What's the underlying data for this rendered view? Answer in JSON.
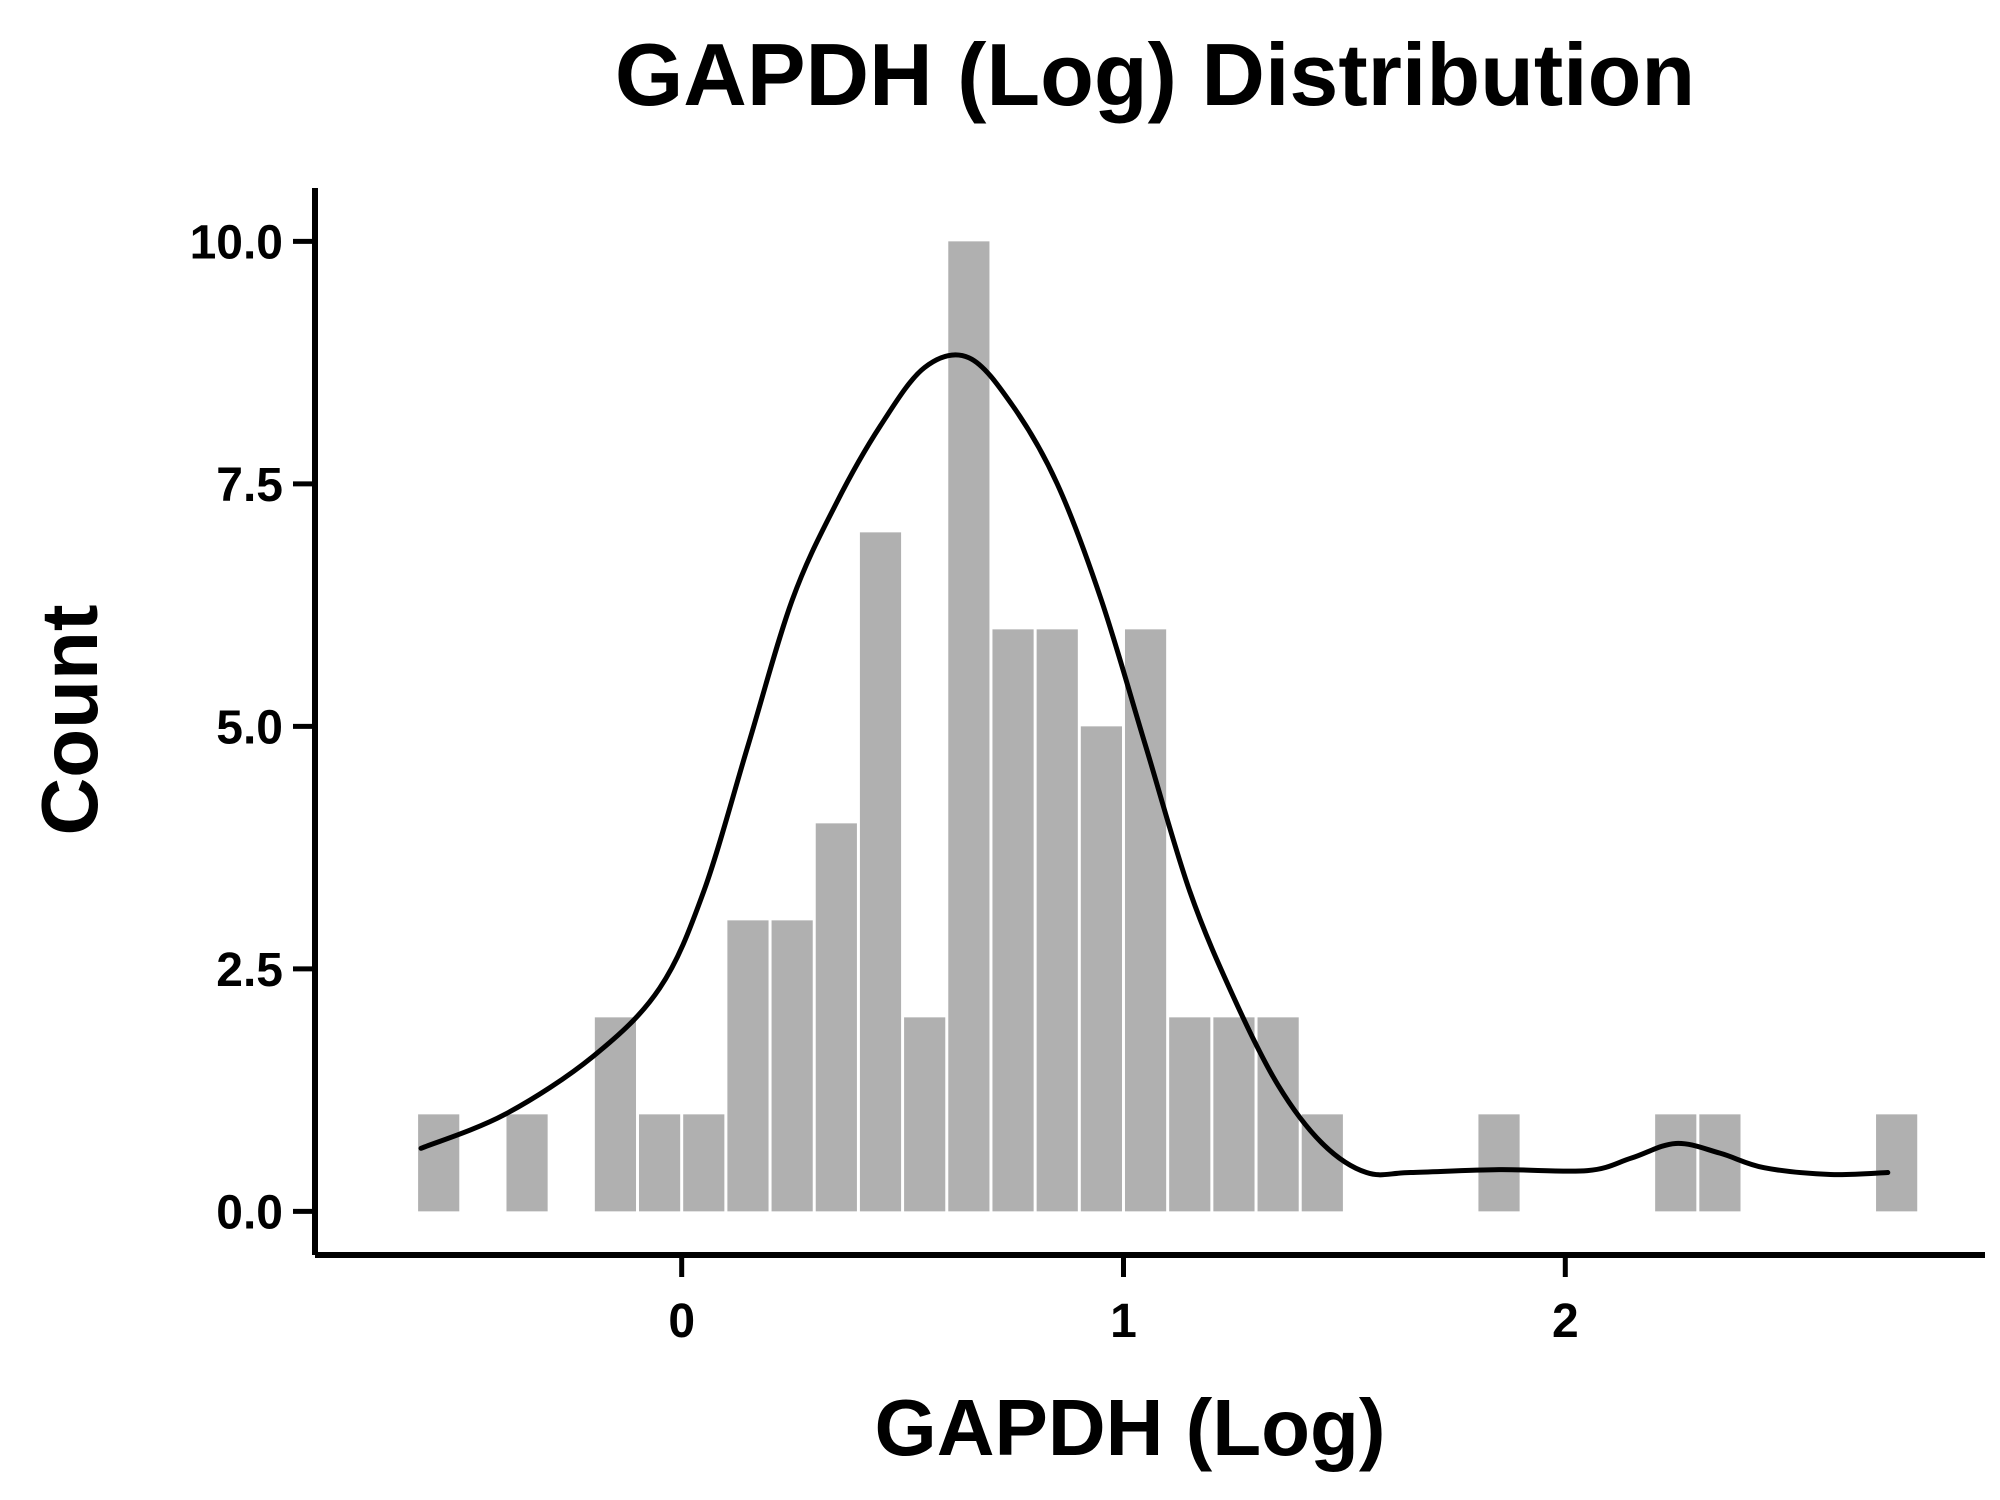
{
  "chart_data": {
    "type": "bar",
    "title": "GAPDH (Log) Distribution",
    "xlabel": "GAPDH (Log)",
    "ylabel": "Count",
    "xlim": [
      -0.83,
      2.95
    ],
    "ylim": [
      -0.45,
      10.55
    ],
    "xticks": [
      0,
      1,
      2
    ],
    "yticks": [
      0.0,
      2.5,
      5.0,
      7.5,
      10.0
    ],
    "xtick_labels": [
      "0",
      "1",
      "2"
    ],
    "ytick_labels": [
      "0.0",
      "2.5",
      "5.0",
      "7.5",
      "10.0"
    ],
    "grid": false,
    "bar_color": "#b0b0b0",
    "line_color": "#000000",
    "bins": {
      "x0": [
        -0.6,
        -0.4,
        -0.2,
        -0.1,
        0.0,
        0.1,
        0.2,
        0.3,
        0.4,
        0.5,
        0.6,
        0.7,
        0.8,
        0.9,
        1.0,
        1.1,
        1.2,
        1.3,
        1.4,
        1.8,
        2.2,
        2.3,
        2.7
      ],
      "x1": [
        -0.5,
        -0.3,
        -0.1,
        0.0,
        0.1,
        0.2,
        0.3,
        0.4,
        0.5,
        0.6,
        0.7,
        0.8,
        0.9,
        1.0,
        1.1,
        1.2,
        1.3,
        1.4,
        1.5,
        1.9,
        2.3,
        2.4,
        2.8
      ],
      "counts": [
        1,
        1,
        2,
        1,
        1,
        3,
        3,
        4,
        7,
        2,
        10,
        6,
        6,
        5,
        6,
        2,
        2,
        2,
        1,
        1,
        1,
        1,
        1
      ]
    },
    "kde": {
      "x": [
        -0.59,
        -0.4,
        -0.2,
        -0.05,
        0.05,
        0.15,
        0.25,
        0.35,
        0.45,
        0.55,
        0.65,
        0.75,
        0.85,
        0.95,
        1.05,
        1.15,
        1.25,
        1.35,
        1.45,
        1.55,
        1.65,
        1.85,
        2.05,
        2.15,
        2.25,
        2.35,
        2.45,
        2.6,
        2.73
      ],
      "y": [
        0.65,
        1.0,
        1.6,
        2.3,
        3.3,
        4.8,
        6.3,
        7.3,
        8.1,
        8.7,
        8.8,
        8.3,
        7.5,
        6.3,
        4.8,
        3.3,
        2.2,
        1.3,
        0.7,
        0.4,
        0.4,
        0.43,
        0.42,
        0.55,
        0.7,
        0.6,
        0.45,
        0.38,
        0.4
      ]
    }
  }
}
